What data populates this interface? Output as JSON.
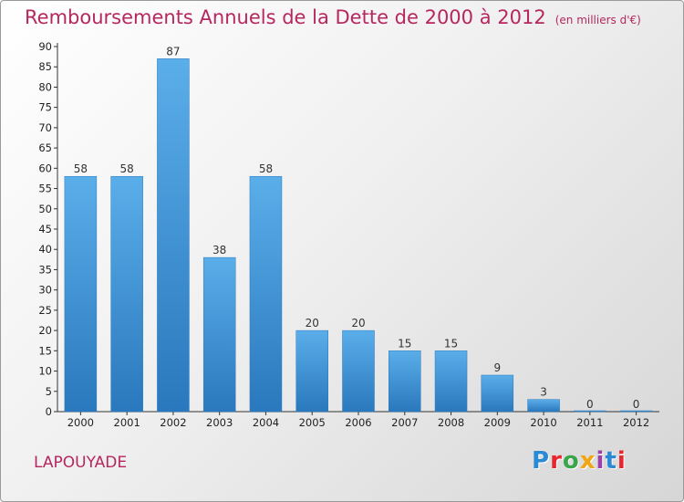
{
  "header": {
    "title": "Remboursements Annuels de la Dette de 2000 à 2012",
    "subtitle": "(en milliers d'€)"
  },
  "footer": {
    "city": "LAPOUYADE",
    "logo": {
      "text": "Proxiti",
      "letter_colors": [
        "#2a8ad4",
        "#e8262e",
        "#3aa64a",
        "#f2a413",
        "#9c3fa8",
        "#2a8ad4",
        "#e8262e"
      ]
    }
  },
  "chart_data": {
    "type": "bar",
    "title": "Remboursements Annuels de la Dette de 2000 à 2012",
    "subtitle": "(en milliers d'€)",
    "categories": [
      "2000",
      "2001",
      "2002",
      "2003",
      "2004",
      "2005",
      "2006",
      "2007",
      "2008",
      "2009",
      "2010",
      "2011",
      "2012"
    ],
    "values": [
      58,
      58,
      87,
      38,
      58,
      20,
      20,
      15,
      15,
      9,
      3,
      0,
      0
    ],
    "data_labels": [
      "58",
      "58",
      "87",
      "38",
      "58",
      "20",
      "20",
      "15",
      "15",
      "9",
      "3",
      "0",
      "0"
    ],
    "xlabel": "",
    "ylabel": "",
    "ylim": [
      0,
      90
    ],
    "yticks": [
      "0",
      "5",
      "10",
      "15",
      "20",
      "25",
      "30",
      "35",
      "40",
      "45",
      "50",
      "55",
      "60",
      "65",
      "70",
      "75",
      "80",
      "85",
      "90"
    ],
    "grid": false,
    "legend": "none",
    "bar_color": "#3f94d6",
    "text_color": "#b5275e"
  }
}
